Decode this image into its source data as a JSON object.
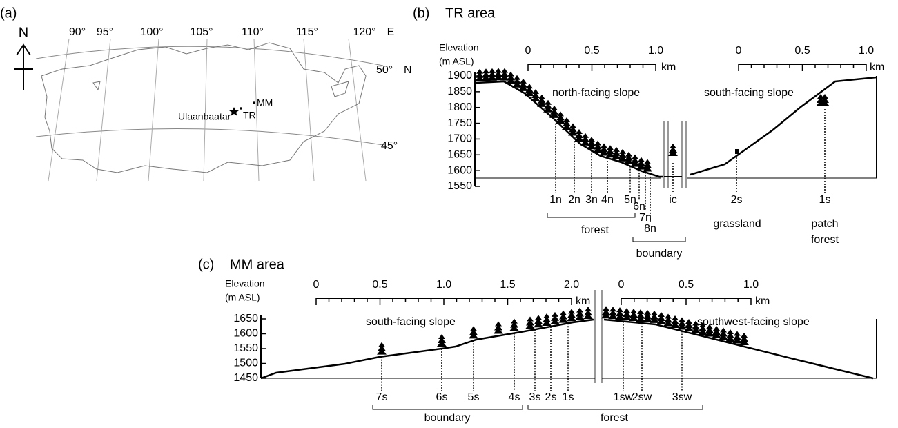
{
  "panel_a": {
    "label": "(a)",
    "north": "N",
    "longitudes": [
      "90°",
      "95°",
      "100°",
      "105°",
      "110°",
      "115°",
      "120°"
    ],
    "east": "E",
    "latitudes": [
      "50°",
      "45°"
    ],
    "lat_suffix": "N",
    "places": [
      "MM",
      "TR",
      "Ulaanbaatar"
    ]
  },
  "panel_b": {
    "label": "(b)",
    "title": "TR area",
    "y_title": [
      "Elevation",
      "(m ASL)"
    ],
    "yticks": [
      "1900",
      "1850",
      "1800",
      "1750",
      "1700",
      "1650",
      "1600",
      "1550"
    ],
    "scale_north": [
      "0",
      "0.5",
      "1.0"
    ],
    "scale_south": [
      "0",
      "0.5",
      "1.0"
    ],
    "unit": "km",
    "slopes": [
      "north-facing slope",
      "south-facing slope"
    ],
    "sites": [
      "1n",
      "2n",
      "3n",
      "4n",
      "5n",
      "6n",
      "7n",
      "8n",
      "ic",
      "2s",
      "1s"
    ],
    "groups": [
      "forest",
      "boundary",
      "grassland"
    ],
    "patch_forest": [
      "patch",
      "forest"
    ]
  },
  "panel_c": {
    "label": "(c)",
    "title": "MM area",
    "y_title": [
      "Elevation",
      "(m ASL)"
    ],
    "yticks": [
      "1650",
      "1600",
      "1550",
      "1500",
      "1450"
    ],
    "scale_south": [
      "0",
      "0.5",
      "1.0",
      "1.5",
      "2.0"
    ],
    "scale_southwest": [
      "0",
      "0.5",
      "1.0"
    ],
    "unit": "km",
    "slopes": [
      "south-facing slope",
      "southwest-facing slope"
    ],
    "sites": [
      "7s",
      "6s",
      "5s",
      "4s",
      "3s",
      "2s",
      "1s",
      "1sw",
      "2sw",
      "3sw"
    ],
    "groups": [
      "boundary",
      "forest"
    ]
  }
}
